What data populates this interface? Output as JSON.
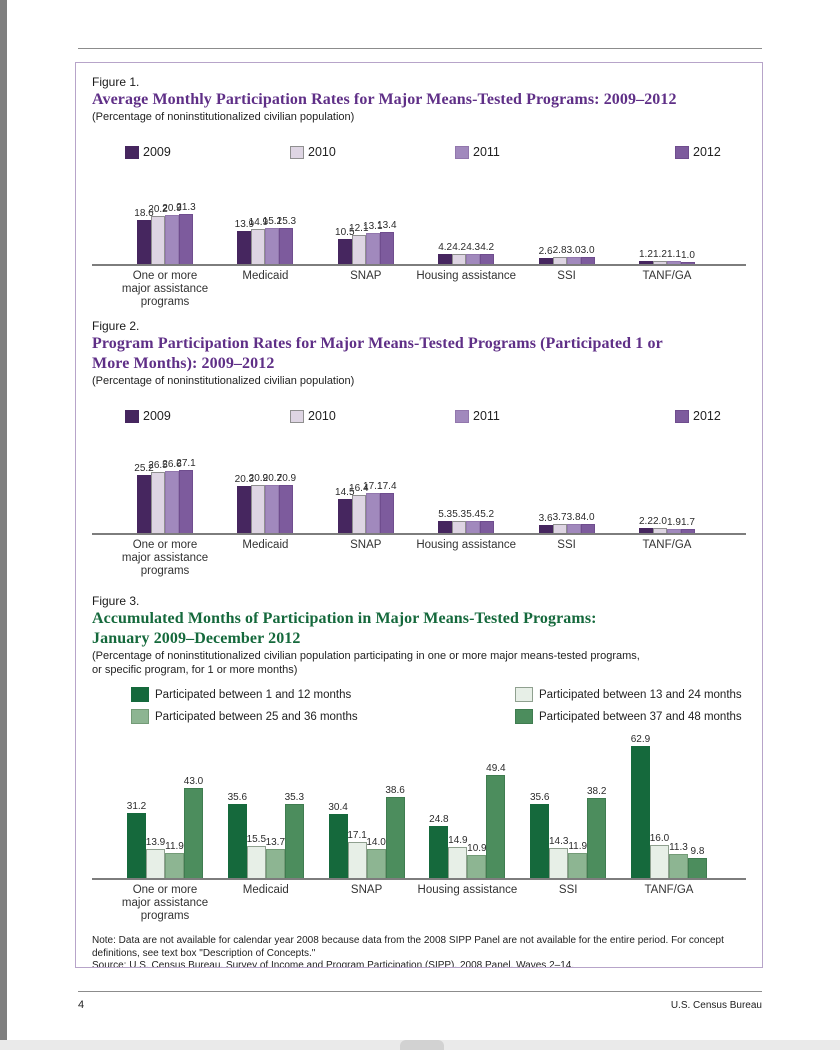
{
  "page": {
    "number": "4",
    "footer_right": "U.S. Census Bureau"
  },
  "colors": {
    "purple_series": [
      "#46265f",
      "#ded5e3",
      "#a189bd",
      "#7d5b9d"
    ],
    "purple_borders": [
      "#46265f",
      "#8f8f8f",
      "#9277ad",
      "#6f4d8e"
    ],
    "green_series": [
      "#15693c",
      "#e7efe7",
      "#8db592",
      "#4c8d5d"
    ],
    "green_borders": [
      "#15693c",
      "#8fa08f",
      "#739b77",
      "#3f7c50"
    ],
    "fig12_title": "#5f2f87",
    "fig3_title": "#15693c",
    "box_border": "#b7a4c9"
  },
  "figures": [
    {
      "label": "Figure 1.",
      "title": "Average Monthly Participation Rates for Major Means-Tested Programs: 2009–2012",
      "subtitle": "(Percentage of noninstitutionalized civilian population)"
    },
    {
      "label": "Figure 2.",
      "title": "Program Participation Rates for Major Means-Tested Programs (Participated 1 or\nMore Months): 2009–2012",
      "subtitle": "(Percentage of noninstitutionalized civilian population)"
    },
    {
      "label": "Figure 3.",
      "title": "Accumulated Months of Participation in Major Means-Tested Programs:\nJanuary 2009–December 2012",
      "subtitle": "(Percentage of noninstitutionalized civilian population participating in one or more major means-tested programs,\nor specific program, for 1 or more months)"
    }
  ],
  "note": "Note: Data are not available for calendar year 2008 because data from the 2008 SIPP Panel are not available for the entire period. For concept definitions, see text box \"Description of Concepts.\"",
  "source": "Source: U.S. Census Bureau, Survey of Income and Program Participation (SIPP), 2008 Panel, Waves 2–14.",
  "chart_data": [
    {
      "type": "bar",
      "title": "Average Monthly Participation Rates for Major Means-Tested Programs: 2009–2012",
      "xlabel": "",
      "ylabel": "Percentage of noninstitutionalized civilian population",
      "categories": [
        "One or more\nmajor assistance\nprograms",
        "Medicaid",
        "SNAP",
        "Housing assistance",
        "SSI",
        "TANF/GA"
      ],
      "series": [
        {
          "name": "2009",
          "values": [
            18.6,
            13.9,
            10.5,
            4.2,
            2.6,
            1.2
          ]
        },
        {
          "name": "2010",
          "values": [
            20.2,
            14.9,
            12.1,
            4.2,
            2.8,
            1.2
          ]
        },
        {
          "name": "2011",
          "values": [
            20.9,
            15.2,
            13.1,
            4.3,
            3.0,
            1.1
          ]
        },
        {
          "name": "2012",
          "values": [
            21.3,
            15.3,
            13.4,
            4.2,
            3.0,
            1.0
          ]
        }
      ],
      "ylim": [
        0,
        22
      ],
      "grid": false,
      "legend_position": "top",
      "value_labels": true
    },
    {
      "type": "bar",
      "title": "Program Participation Rates for Major Means-Tested Programs (Participated 1 or More Months): 2009–2012",
      "xlabel": "",
      "ylabel": "Percentage of noninstitutionalized civilian population",
      "categories": [
        "One or more\nmajor assistance\nprograms",
        "Medicaid",
        "SNAP",
        "Housing assistance",
        "SSI",
        "TANF/GA"
      ],
      "series": [
        {
          "name": "2009",
          "values": [
            25.2,
            20.3,
            14.5,
            5.3,
            3.6,
            2.2
          ]
        },
        {
          "name": "2010",
          "values": [
            26.5,
            20.9,
            16.4,
            5.3,
            3.7,
            2.0
          ]
        },
        {
          "name": "2011",
          "values": [
            26.6,
            20.7,
            17.1,
            5.4,
            3.8,
            1.9
          ]
        },
        {
          "name": "2012",
          "values": [
            27.1,
            20.9,
            17.4,
            5.2,
            4.0,
            1.7
          ]
        }
      ],
      "ylim": [
        0,
        28
      ],
      "grid": false,
      "legend_position": "top",
      "value_labels": true
    },
    {
      "type": "bar",
      "title": "Accumulated Months of Participation in Major Means-Tested Programs: January 2009–December 2012",
      "xlabel": "",
      "ylabel": "Percentage of noninstitutionalized civilian population participating, for 1 or more months",
      "categories": [
        "One or more\nmajor assistance\nprograms",
        "Medicaid",
        "SNAP",
        "Housing assistance",
        "SSI",
        "TANF/GA"
      ],
      "series": [
        {
          "name": "Participated between 1 and 12 months",
          "values": [
            31.2,
            35.6,
            30.4,
            24.8,
            35.6,
            62.9
          ]
        },
        {
          "name": "Participated between 13 and 24 months",
          "values": [
            13.9,
            15.5,
            17.1,
            14.9,
            14.3,
            16.0
          ]
        },
        {
          "name": "Participated between 25 and 36 months",
          "values": [
            11.9,
            13.7,
            14.0,
            10.9,
            11.9,
            11.3
          ]
        },
        {
          "name": "Participated between 37 and 48 months",
          "values": [
            43.0,
            35.3,
            38.6,
            49.4,
            38.2,
            9.8
          ]
        }
      ],
      "ylim": [
        0,
        65
      ],
      "grid": false,
      "legend_position": "top",
      "value_labels": true
    }
  ]
}
